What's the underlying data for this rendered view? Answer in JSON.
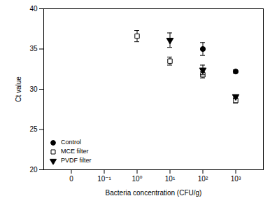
{
  "chart_data": {
    "type": "scatter",
    "categories": [
      "0",
      "10⁻¹",
      "10⁰",
      "10¹",
      "10²",
      "10³"
    ],
    "xlabel": "Bacteria concentration (CFU/g)",
    "ylabel": "Ct value",
    "ylim": [
      20,
      40
    ],
    "yticks": [
      20,
      25,
      30,
      35,
      40
    ],
    "legend": "lower left",
    "series": [
      {
        "name": "Control",
        "color": "#000000",
        "marker": "circle",
        "values": [
          null,
          null,
          null,
          null,
          35.0,
          32.2
        ],
        "errors": [
          null,
          null,
          null,
          null,
          0.8,
          0.2
        ]
      },
      {
        "name": "MCE filter",
        "color": "#000000",
        "marker": "open-square",
        "values": [
          null,
          null,
          36.6,
          33.5,
          31.8,
          28.6
        ],
        "errors": [
          null,
          null,
          0.7,
          0.5,
          0.4,
          0.3
        ]
      },
      {
        "name": "PVDF filter",
        "color": "#000000",
        "marker": "triangle-down",
        "values": [
          null,
          null,
          null,
          36.1,
          32.4,
          29.1
        ],
        "errors": [
          null,
          null,
          null,
          0.9,
          0.6,
          0.2
        ]
      }
    ]
  }
}
